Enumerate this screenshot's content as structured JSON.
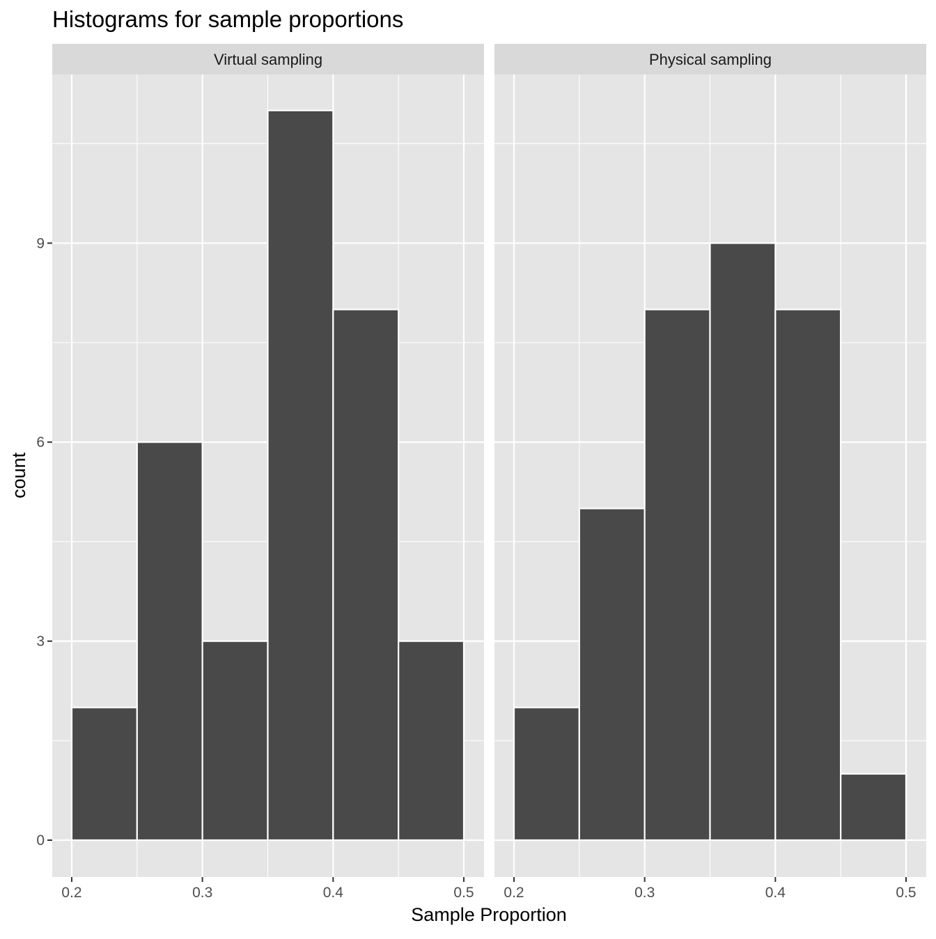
{
  "chart_data": {
    "type": "bar",
    "title": "Histograms for sample proportions",
    "xlabel": "Sample Proportion",
    "ylabel": "count",
    "xlim": [
      0.2,
      0.5
    ],
    "ylim": [
      0,
      11
    ],
    "x_ticks": [
      "0.2",
      "0.3",
      "0.4",
      "0.5"
    ],
    "y_ticks": [
      "0",
      "3",
      "6",
      "9"
    ],
    "bin_width": 0.05,
    "grid": true,
    "panels": [
      {
        "name": "Virtual sampling",
        "bins": [
          {
            "x0": 0.2,
            "x1": 0.25,
            "count": 2
          },
          {
            "x0": 0.25,
            "x1": 0.3,
            "count": 6
          },
          {
            "x0": 0.3,
            "x1": 0.35,
            "count": 3
          },
          {
            "x0": 0.35,
            "x1": 0.4,
            "count": 11
          },
          {
            "x0": 0.4,
            "x1": 0.45,
            "count": 8
          },
          {
            "x0": 0.45,
            "x1": 0.5,
            "count": 3
          }
        ]
      },
      {
        "name": "Physical sampling",
        "bins": [
          {
            "x0": 0.2,
            "x1": 0.25,
            "count": 2
          },
          {
            "x0": 0.25,
            "x1": 0.3,
            "count": 5
          },
          {
            "x0": 0.3,
            "x1": 0.35,
            "count": 8
          },
          {
            "x0": 0.35,
            "x1": 0.4,
            "count": 9
          },
          {
            "x0": 0.4,
            "x1": 0.45,
            "count": 8
          },
          {
            "x0": 0.45,
            "x1": 0.5,
            "count": 1
          }
        ]
      }
    ],
    "colors": {
      "bar_fill": "#494949",
      "bar_outline": "#ffffff",
      "panel_background": "#e5e5e5",
      "grid": "#ffffff",
      "strip_background": "#d9d9d9"
    }
  }
}
